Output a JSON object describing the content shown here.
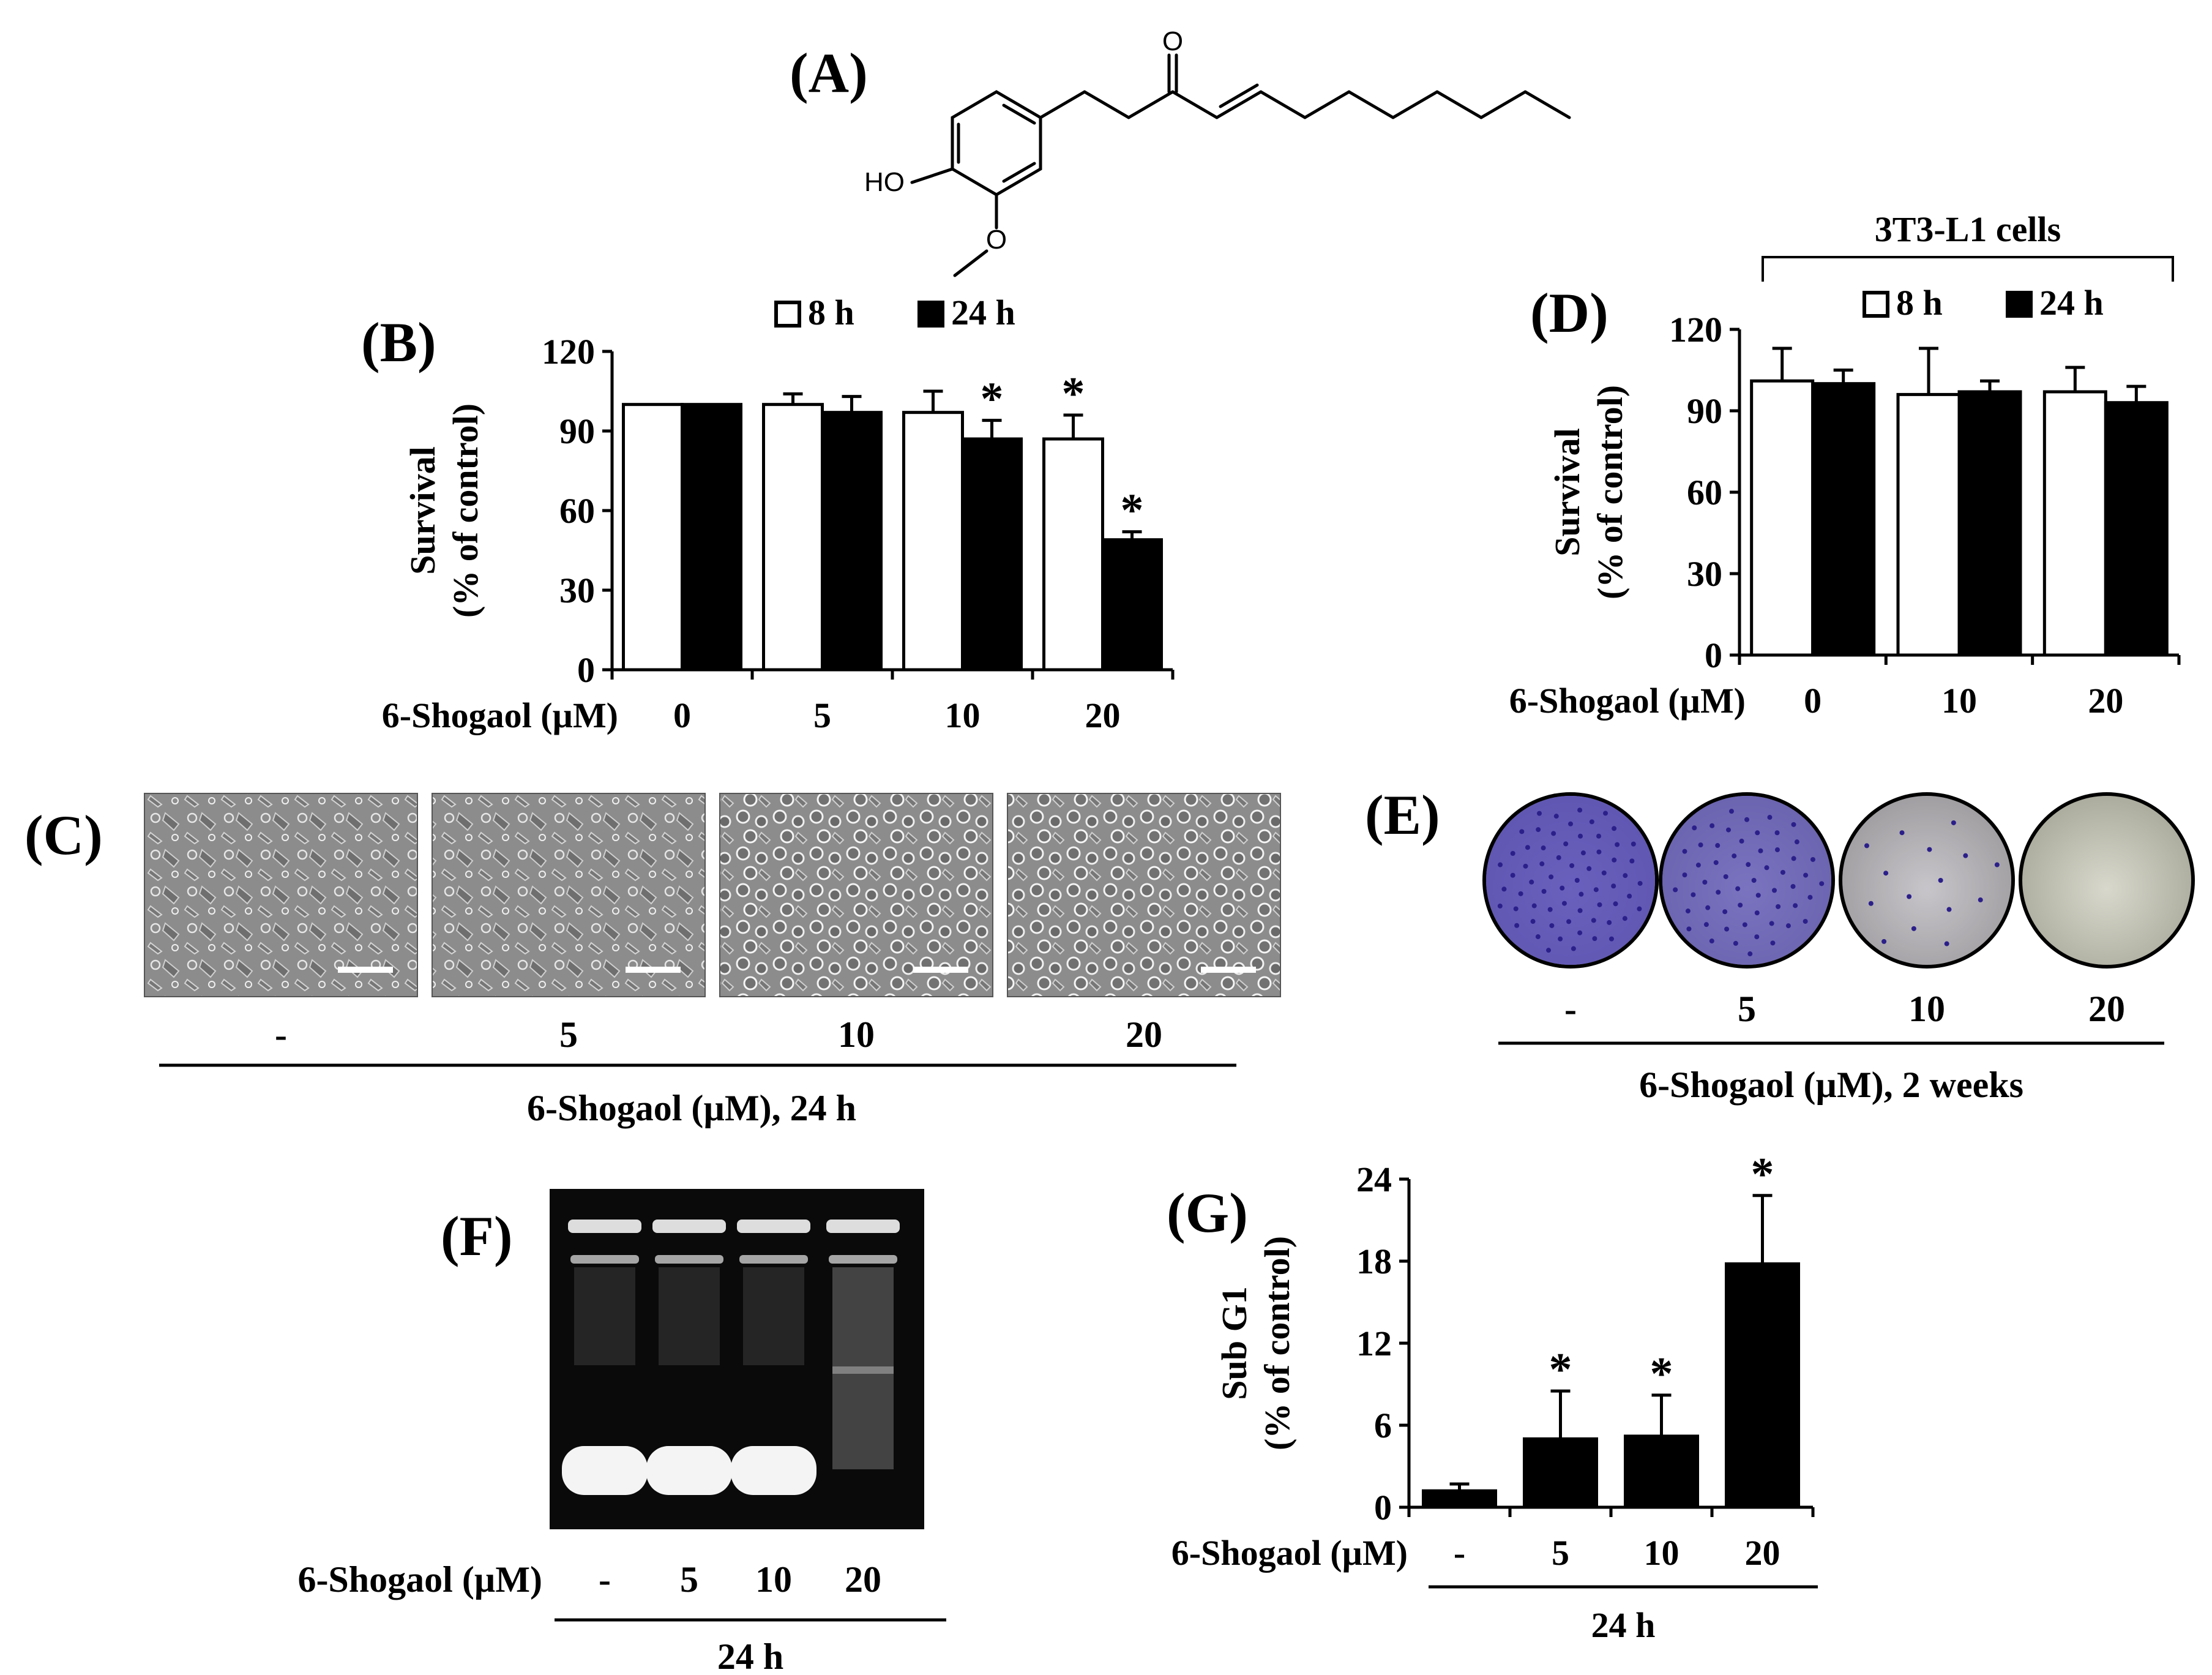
{
  "colors": {
    "filled": "#000000",
    "open": "#ffffff",
    "stain": "#4a3fb8",
    "gel_bg": "#0a0a0a"
  },
  "panels": {
    "A": {
      "label": "(A)",
      "atoms": {
        "oxygen": "O",
        "hydroxyl": "HO",
        "methoxy_o": "O"
      }
    },
    "B": {
      "label": "(B)"
    },
    "C": {
      "label": "(C)",
      "lanes": [
        "-",
        "5",
        "10",
        "20"
      ],
      "caption": "6-Shogaol (µM), 24 h"
    },
    "D": {
      "label": "(D)",
      "bracket_label": "3T3-L1 cells"
    },
    "E": {
      "label": "(E)",
      "lanes": [
        "-",
        "5",
        "10",
        "20"
      ],
      "caption": "6-Shogaol (µM), 2 weeks",
      "stain_level": [
        1.0,
        0.85,
        0.15,
        0.0
      ]
    },
    "F": {
      "label": "(F)",
      "xlabel": "6-Shogaol (µM)",
      "lanes": [
        "-",
        "5",
        "10",
        "20"
      ],
      "caption": "24 h"
    },
    "G": {
      "label": "(G)"
    }
  },
  "chart_data": [
    {
      "panel": "B",
      "type": "bar",
      "xlabel": "6-Shogaol (µM)",
      "ylabel": [
        "Survival",
        "(% of control)"
      ],
      "categories": [
        "0",
        "5",
        "10",
        "20"
      ],
      "series": [
        {
          "name": "8 h",
          "style": "open",
          "values": [
            100,
            100,
            97,
            87
          ],
          "errors": [
            0,
            4,
            8,
            9
          ],
          "significant": [
            false,
            false,
            false,
            true
          ]
        },
        {
          "name": "24 h",
          "style": "filled",
          "values": [
            100,
            97,
            87,
            49
          ],
          "errors": [
            0,
            6,
            7,
            3
          ],
          "significant": [
            false,
            false,
            true,
            true
          ]
        }
      ],
      "ylim": [
        0,
        120
      ],
      "yticks": [
        0,
        30,
        60,
        90,
        120
      ],
      "legend": "top-center",
      "marker": "*"
    },
    {
      "panel": "D",
      "type": "bar",
      "xlabel": "6-Shogaol (µM)",
      "ylabel": [
        "Survival",
        "(% of control)"
      ],
      "categories": [
        "0",
        "10",
        "20"
      ],
      "series": [
        {
          "name": "8 h",
          "style": "open",
          "values": [
            101,
            96,
            97
          ],
          "errors": [
            12,
            17,
            9
          ],
          "significant": [
            false,
            false,
            false
          ]
        },
        {
          "name": "24 h",
          "style": "filled",
          "values": [
            100,
            97,
            93
          ],
          "errors": [
            5,
            4,
            6
          ],
          "significant": [
            false,
            false,
            false
          ]
        }
      ],
      "ylim": [
        0,
        120
      ],
      "yticks": [
        0,
        30,
        60,
        90,
        120
      ],
      "legend": "top-center",
      "marker": "*"
    },
    {
      "panel": "G",
      "type": "bar",
      "xlabel": "6-Shogaol (µM)",
      "ylabel": [
        "Sub G1",
        "(% of control)"
      ],
      "categories": [
        "-",
        "5",
        "10",
        "20"
      ],
      "caption": "24 h",
      "series": [
        {
          "style": "filled",
          "values": [
            1.2,
            5.0,
            5.2,
            17.8
          ],
          "errors": [
            0.5,
            3.5,
            3.0,
            5.0
          ],
          "significant": [
            false,
            true,
            true,
            true
          ]
        }
      ],
      "ylim": [
        0,
        24
      ],
      "yticks": [
        0,
        6,
        12,
        18,
        24
      ],
      "marker": "*"
    }
  ]
}
